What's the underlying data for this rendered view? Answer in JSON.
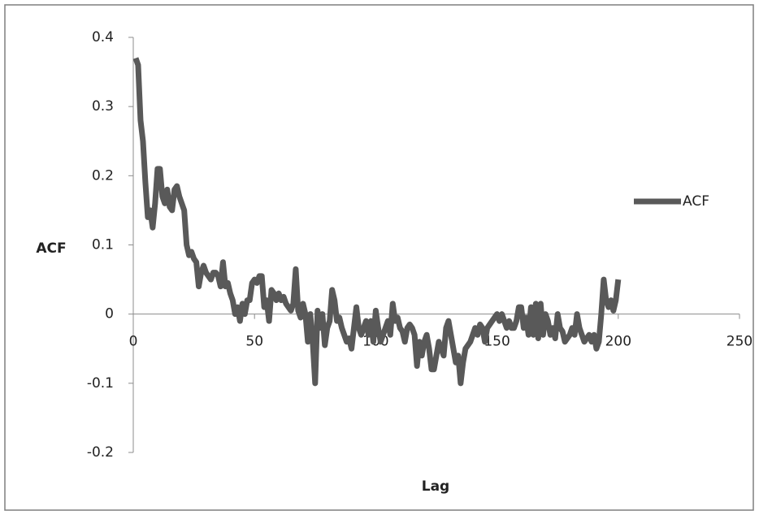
{
  "chart_data": {
    "type": "line",
    "xlabel": "Lag",
    "ylabel": "ACF",
    "x": [
      1,
      2,
      3,
      4,
      5,
      6,
      7,
      8,
      9,
      10,
      11,
      12,
      13,
      14,
      15,
      16,
      17,
      18,
      19,
      20,
      21,
      22,
      23,
      24,
      25,
      26,
      27,
      28,
      29,
      30,
      31,
      32,
      33,
      34,
      35,
      36,
      37,
      38,
      39,
      40,
      41,
      42,
      43,
      44,
      45,
      46,
      47,
      48,
      49,
      50,
      51,
      52,
      53,
      54,
      55,
      56,
      57,
      58,
      59,
      60,
      61,
      62,
      63,
      64,
      65,
      66,
      67,
      68,
      69,
      70,
      71,
      72,
      73,
      74,
      75,
      76,
      77,
      78,
      79,
      80,
      81,
      82,
      83,
      84,
      85,
      86,
      87,
      88,
      89,
      90,
      91,
      92,
      93,
      94,
      95,
      96,
      97,
      98,
      99,
      100,
      101,
      102,
      103,
      104,
      105,
      106,
      107,
      108,
      109,
      110,
      111,
      112,
      113,
      114,
      115,
      116,
      117,
      118,
      119,
      120,
      121,
      122,
      123,
      124,
      125,
      126,
      127,
      128,
      129,
      130,
      131,
      132,
      133,
      134,
      135,
      136,
      137,
      138,
      139,
      140,
      141,
      142,
      143,
      144,
      145,
      146,
      147,
      148,
      149,
      150,
      151,
      152,
      153,
      154,
      155,
      156,
      157,
      158,
      159,
      160,
      161,
      162,
      163,
      164,
      165,
      166,
      167,
      168,
      169,
      170,
      171,
      172,
      173,
      174,
      175,
      176,
      177,
      178,
      179,
      180,
      181,
      182,
      183,
      184,
      185,
      186,
      187,
      188,
      189,
      190,
      191,
      192,
      193,
      194,
      195,
      196,
      197,
      198,
      199,
      200
    ],
    "series": [
      {
        "name": "ACF",
        "color": "#595959",
        "values": [
          0.37,
          0.36,
          0.28,
          0.25,
          0.19,
          0.14,
          0.15,
          0.125,
          0.16,
          0.21,
          0.21,
          0.17,
          0.16,
          0.18,
          0.155,
          0.15,
          0.18,
          0.185,
          0.17,
          0.16,
          0.15,
          0.1,
          0.085,
          0.09,
          0.08,
          0.075,
          0.04,
          0.06,
          0.07,
          0.06,
          0.055,
          0.05,
          0.06,
          0.06,
          0.055,
          0.04,
          0.075,
          0.04,
          0.045,
          0.03,
          0.02,
          0,
          0.01,
          -0.01,
          0.015,
          0,
          0.02,
          0.02,
          0.045,
          0.05,
          0.045,
          0.055,
          0.055,
          0.01,
          0.02,
          -0.01,
          0.035,
          0.03,
          0.02,
          0.03,
          0.02,
          0.025,
          0.015,
          0.01,
          0.005,
          0.015,
          0.065,
          0.005,
          -0.005,
          0.015,
          0,
          -0.04,
          0,
          -0.04,
          -0.1,
          0.005,
          -0.02,
          0,
          -0.045,
          -0.02,
          -0.01,
          0.035,
          0.02,
          -0.01,
          -0.005,
          -0.02,
          -0.03,
          -0.04,
          -0.035,
          -0.05,
          -0.02,
          0.01,
          -0.02,
          -0.03,
          -0.02,
          -0.01,
          -0.03,
          -0.01,
          -0.04,
          0.005,
          -0.02,
          -0.04,
          -0.03,
          -0.02,
          -0.01,
          -0.03,
          0.015,
          -0.01,
          -0.005,
          -0.02,
          -0.025,
          -0.04,
          -0.02,
          -0.015,
          -0.02,
          -0.03,
          -0.075,
          -0.04,
          -0.06,
          -0.04,
          -0.03,
          -0.05,
          -0.08,
          -0.08,
          -0.06,
          -0.04,
          -0.05,
          -0.06,
          -0.02,
          -0.01,
          -0.03,
          -0.05,
          -0.07,
          -0.06,
          -0.1,
          -0.07,
          -0.05,
          -0.045,
          -0.04,
          -0.03,
          -0.02,
          -0.03,
          -0.015,
          -0.02,
          -0.04,
          -0.02,
          -0.015,
          -0.01,
          -0.005,
          0,
          -0.01,
          0,
          -0.01,
          -0.02,
          -0.01,
          -0.02,
          -0.02,
          -0.01,
          0.01,
          0.01,
          -0.02,
          -0.005,
          -0.03,
          0.01,
          -0.03,
          0.015,
          -0.035,
          0.015,
          -0.03,
          0,
          -0.01,
          -0.03,
          -0.02,
          -0.035,
          0,
          -0.02,
          -0.025,
          -0.04,
          -0.035,
          -0.03,
          -0.02,
          -0.03,
          0,
          -0.02,
          -0.03,
          -0.04,
          -0.035,
          -0.03,
          -0.04,
          -0.03,
          -0.05,
          -0.04,
          0,
          0.05,
          0.02,
          0.01,
          0.02,
          0.005,
          0.02,
          0.05
        ]
      }
    ],
    "xlim": [
      0,
      250
    ],
    "xticks": [
      0,
      50,
      100,
      150,
      200,
      250
    ],
    "ylim": [
      -0.2,
      0.4
    ],
    "yticks": [
      -0.2,
      -0.1,
      0,
      0.1,
      0.2,
      0.3,
      0.4
    ],
    "grid": false,
    "legend": "right"
  }
}
